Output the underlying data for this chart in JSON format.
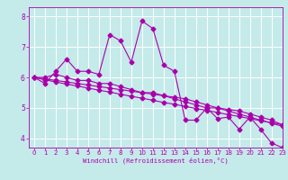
{
  "xlabel": "Windchill (Refroidissement éolien,°C)",
  "ylabel": "",
  "xlim": [
    -0.5,
    23
  ],
  "ylim": [
    3.7,
    8.3
  ],
  "yticks": [
    4,
    5,
    6,
    7,
    8
  ],
  "xticks": [
    0,
    1,
    2,
    3,
    4,
    5,
    6,
    7,
    8,
    9,
    10,
    11,
    12,
    13,
    14,
    15,
    16,
    17,
    18,
    19,
    20,
    21,
    22,
    23
  ],
  "bg_color": "#c5eaea",
  "grid_color": "#ffffff",
  "line_color": "#aa00aa",
  "lines": [
    [
      6.0,
      5.8,
      6.2,
      6.6,
      6.2,
      6.2,
      6.1,
      7.4,
      7.2,
      6.5,
      7.85,
      7.6,
      6.4,
      6.2,
      4.6,
      4.6,
      5.0,
      4.65,
      4.7,
      4.3,
      4.7,
      4.3,
      3.85,
      3.7
    ],
    [
      6.0,
      6.0,
      6.1,
      6.0,
      5.9,
      5.9,
      5.8,
      5.8,
      5.7,
      5.6,
      5.5,
      5.5,
      5.4,
      5.3,
      5.2,
      5.1,
      5.0,
      5.0,
      4.9,
      4.8,
      4.7,
      4.6,
      4.5,
      4.4
    ],
    [
      6.0,
      5.95,
      5.9,
      5.85,
      5.8,
      5.75,
      5.7,
      5.65,
      5.6,
      5.55,
      5.5,
      5.45,
      5.4,
      5.35,
      5.3,
      5.2,
      5.1,
      5.0,
      4.95,
      4.9,
      4.8,
      4.7,
      4.6,
      4.45
    ],
    [
      6.0,
      5.92,
      5.85,
      5.78,
      5.72,
      5.65,
      5.58,
      5.52,
      5.45,
      5.38,
      5.32,
      5.25,
      5.18,
      5.12,
      5.05,
      4.98,
      4.92,
      4.85,
      4.78,
      4.72,
      4.65,
      4.58,
      4.52,
      4.45
    ]
  ],
  "marker": "D",
  "marker_size": 2.5,
  "line_width": 0.8,
  "tick_fontsize": 5.0,
  "xlabel_fontsize": 5.2
}
